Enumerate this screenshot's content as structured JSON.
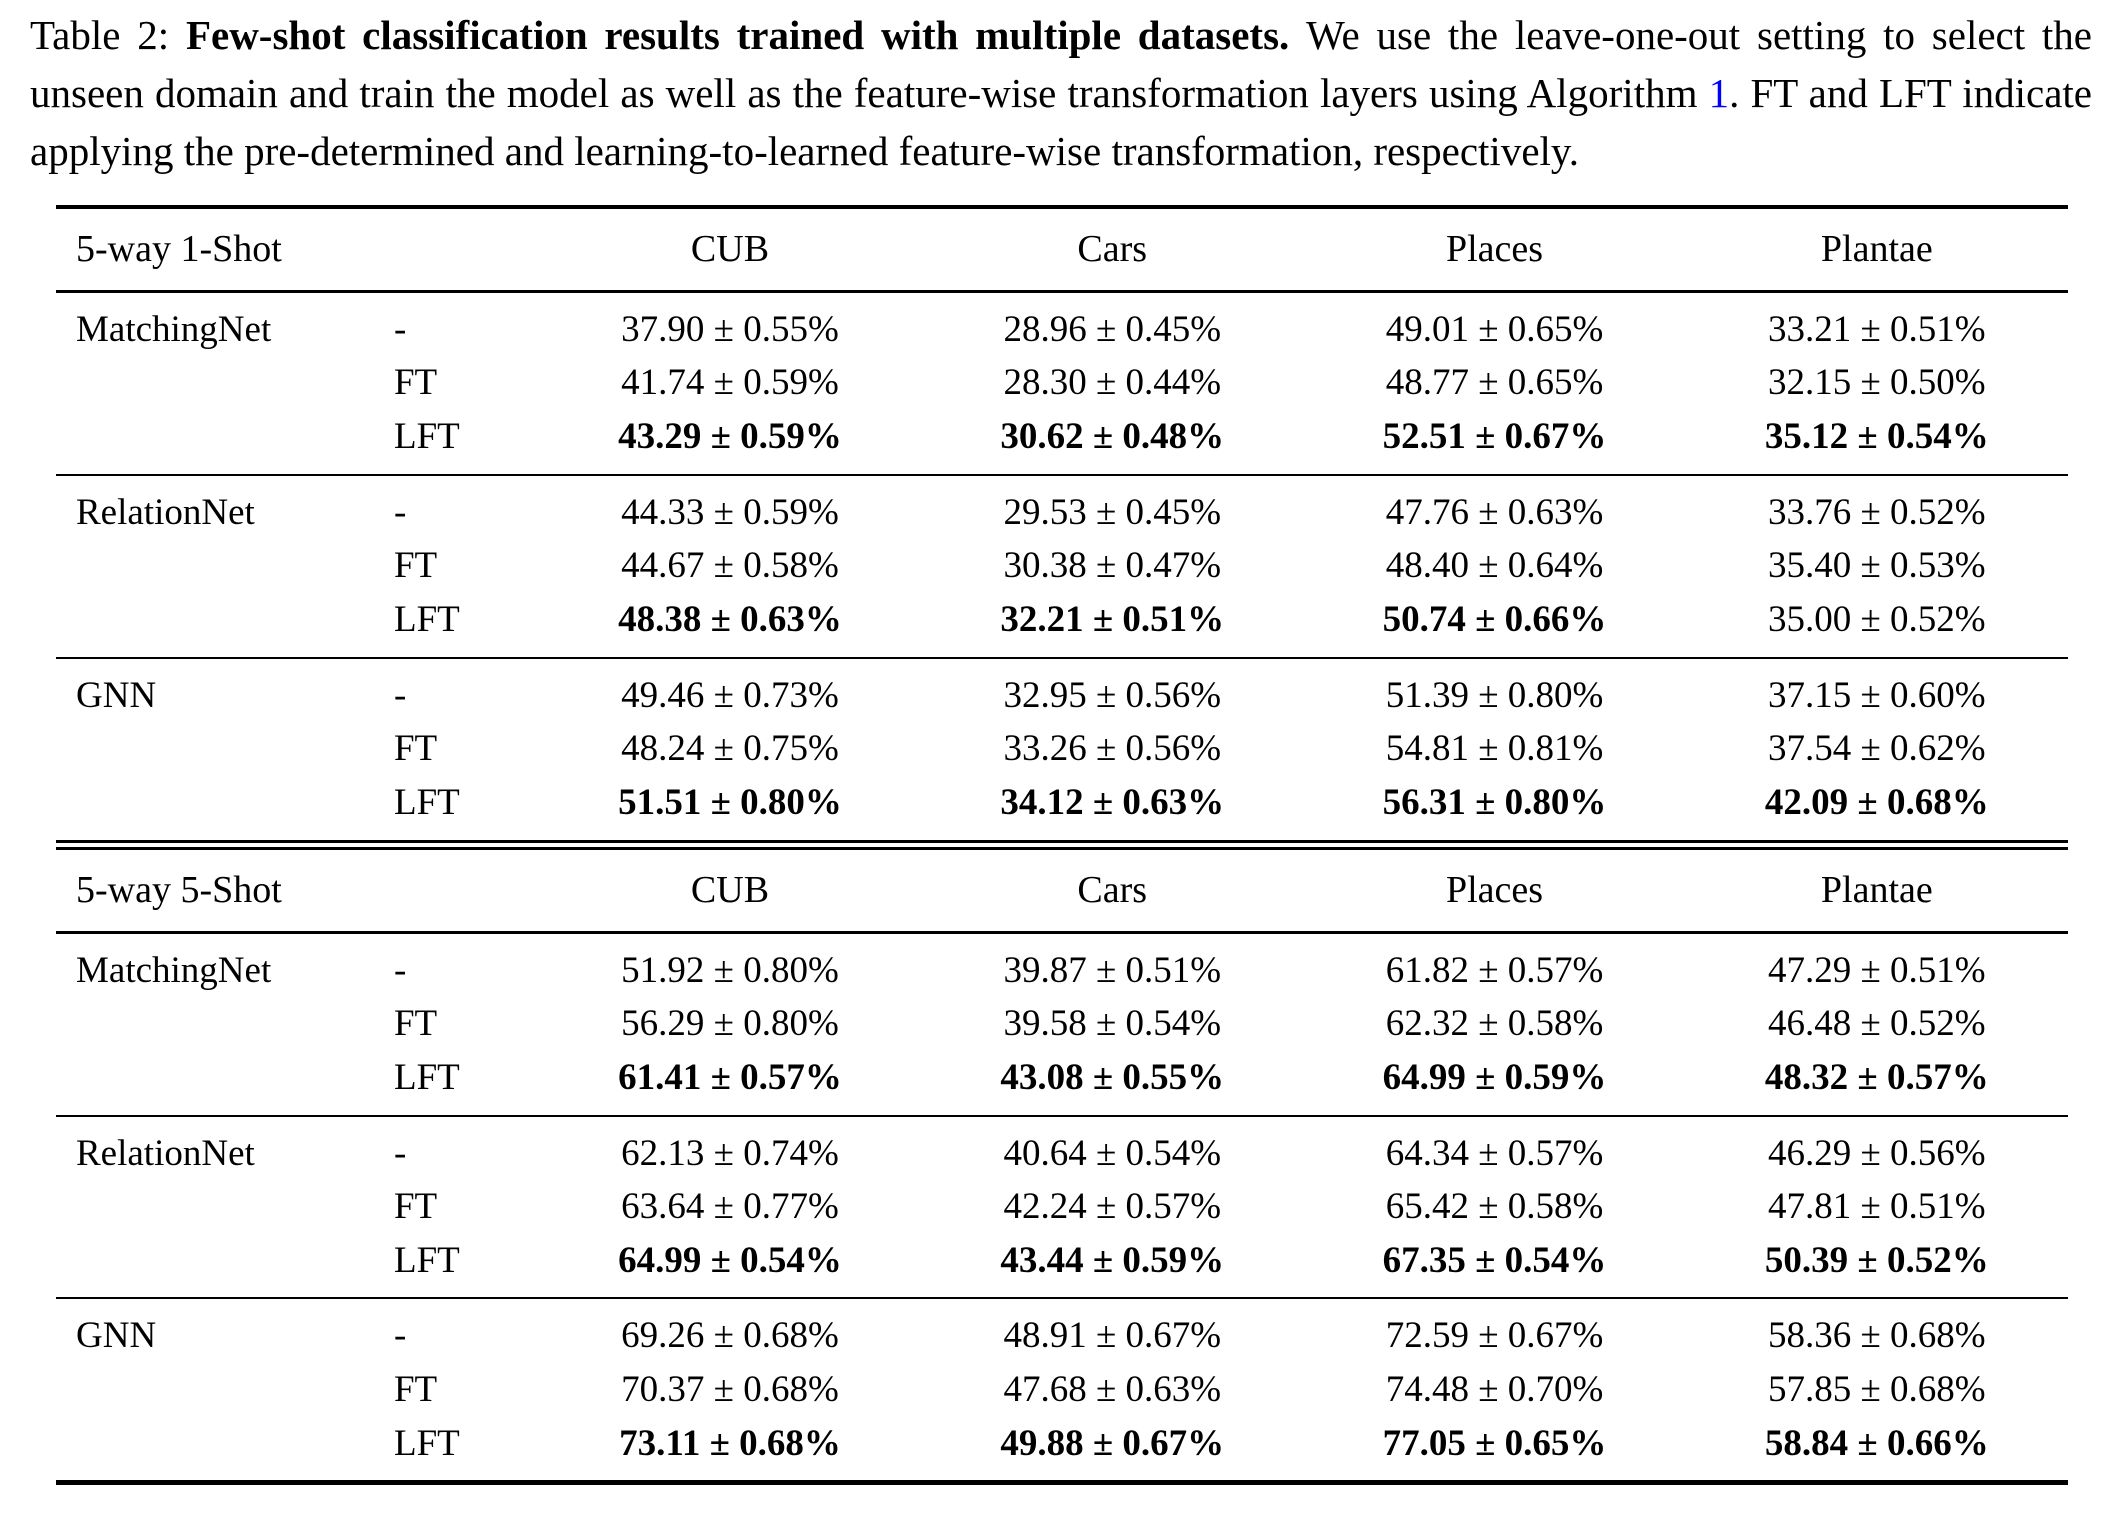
{
  "caption": {
    "label": "Table 2: ",
    "title_bold": "Few-shot classification results trained with multiple datasets. ",
    "text_before_link": "We use the leave-one-out setting to select the unseen domain and train the model as well as the feature-wise transformation layers using Algorithm ",
    "algorithm_link": "1",
    "text_after_link": ". FT and LFT indicate applying the pre-determined and learning-to-learned feature-wise transformation, respectively.",
    "link_color": "#0000ff"
  },
  "table": {
    "dataset_columns": [
      "CUB",
      "Cars",
      "Places",
      "Plantae"
    ],
    "sections": [
      {
        "header": "5-way 1-Shot",
        "groups": [
          {
            "method": "MatchingNet",
            "rows": [
              {
                "variant": "-",
                "values": [
                  "37.90 ± 0.55%",
                  "28.96 ± 0.45%",
                  "49.01 ± 0.65%",
                  "33.21 ± 0.51%"
                ],
                "bold": [
                  false,
                  false,
                  false,
                  false
                ]
              },
              {
                "variant": "FT",
                "values": [
                  "41.74 ± 0.59%",
                  "28.30 ± 0.44%",
                  "48.77 ± 0.65%",
                  "32.15 ± 0.50%"
                ],
                "bold": [
                  false,
                  false,
                  false,
                  false
                ]
              },
              {
                "variant": "LFT",
                "values": [
                  "43.29 ± 0.59%",
                  "30.62 ± 0.48%",
                  "52.51 ± 0.67%",
                  "35.12 ± 0.54%"
                ],
                "bold": [
                  true,
                  true,
                  true,
                  true
                ]
              }
            ]
          },
          {
            "method": "RelationNet",
            "rows": [
              {
                "variant": "-",
                "values": [
                  "44.33 ± 0.59%",
                  "29.53 ± 0.45%",
                  "47.76 ± 0.63%",
                  "33.76 ± 0.52%"
                ],
                "bold": [
                  false,
                  false,
                  false,
                  false
                ]
              },
              {
                "variant": "FT",
                "values": [
                  "44.67 ± 0.58%",
                  "30.38 ± 0.47%",
                  "48.40 ± 0.64%",
                  "35.40 ± 0.53%"
                ],
                "bold": [
                  false,
                  false,
                  false,
                  false
                ]
              },
              {
                "variant": "LFT",
                "values": [
                  "48.38 ± 0.63%",
                  "32.21 ± 0.51%",
                  "50.74 ± 0.66%",
                  "35.00 ± 0.52%"
                ],
                "bold": [
                  true,
                  true,
                  true,
                  false
                ]
              }
            ]
          },
          {
            "method": "GNN",
            "rows": [
              {
                "variant": "-",
                "values": [
                  "49.46 ± 0.73%",
                  "32.95 ± 0.56%",
                  "51.39 ± 0.80%",
                  "37.15 ± 0.60%"
                ],
                "bold": [
                  false,
                  false,
                  false,
                  false
                ]
              },
              {
                "variant": "FT",
                "values": [
                  "48.24 ± 0.75%",
                  "33.26 ± 0.56%",
                  "54.81 ± 0.81%",
                  "37.54 ± 0.62%"
                ],
                "bold": [
                  false,
                  false,
                  false,
                  false
                ]
              },
              {
                "variant": "LFT",
                "values": [
                  "51.51 ± 0.80%",
                  "34.12 ± 0.63%",
                  "56.31 ± 0.80%",
                  "42.09 ± 0.68%"
                ],
                "bold": [
                  true,
                  true,
                  true,
                  true
                ]
              }
            ]
          }
        ]
      },
      {
        "header": "5-way 5-Shot",
        "groups": [
          {
            "method": "MatchingNet",
            "rows": [
              {
                "variant": "-",
                "values": [
                  "51.92 ± 0.80%",
                  "39.87 ± 0.51%",
                  "61.82 ± 0.57%",
                  "47.29 ± 0.51%"
                ],
                "bold": [
                  false,
                  false,
                  false,
                  false
                ]
              },
              {
                "variant": "FT",
                "values": [
                  "56.29 ± 0.80%",
                  "39.58 ± 0.54%",
                  "62.32 ± 0.58%",
                  "46.48 ± 0.52%"
                ],
                "bold": [
                  false,
                  false,
                  false,
                  false
                ]
              },
              {
                "variant": "LFT",
                "values": [
                  "61.41 ± 0.57%",
                  "43.08 ± 0.55%",
                  "64.99 ± 0.59%",
                  "48.32 ± 0.57%"
                ],
                "bold": [
                  true,
                  true,
                  true,
                  true
                ]
              }
            ]
          },
          {
            "method": "RelationNet",
            "rows": [
              {
                "variant": "-",
                "values": [
                  "62.13 ± 0.74%",
                  "40.64 ± 0.54%",
                  "64.34 ± 0.57%",
                  "46.29 ± 0.56%"
                ],
                "bold": [
                  false,
                  false,
                  false,
                  false
                ]
              },
              {
                "variant": "FT",
                "values": [
                  "63.64 ± 0.77%",
                  "42.24 ± 0.57%",
                  "65.42 ± 0.58%",
                  "47.81 ± 0.51%"
                ],
                "bold": [
                  false,
                  false,
                  false,
                  false
                ]
              },
              {
                "variant": "LFT",
                "values": [
                  "64.99 ± 0.54%",
                  "43.44 ± 0.59%",
                  "67.35 ± 0.54%",
                  "50.39 ± 0.52%"
                ],
                "bold": [
                  true,
                  true,
                  true,
                  true
                ]
              }
            ]
          },
          {
            "method": "GNN",
            "rows": [
              {
                "variant": "-",
                "values": [
                  "69.26 ± 0.68%",
                  "48.91 ± 0.67%",
                  "72.59 ± 0.67%",
                  "58.36 ± 0.68%"
                ],
                "bold": [
                  false,
                  false,
                  false,
                  false
                ]
              },
              {
                "variant": "FT",
                "values": [
                  "70.37 ± 0.68%",
                  "47.68 ± 0.63%",
                  "74.48 ± 0.70%",
                  "57.85 ± 0.68%"
                ],
                "bold": [
                  false,
                  false,
                  false,
                  false
                ]
              },
              {
                "variant": "LFT",
                "values": [
                  "73.11 ± 0.68%",
                  "49.88 ± 0.67%",
                  "77.05 ± 0.65%",
                  "58.84 ± 0.66%"
                ],
                "bold": [
                  true,
                  true,
                  true,
                  true
                ]
              }
            ]
          }
        ]
      }
    ]
  }
}
